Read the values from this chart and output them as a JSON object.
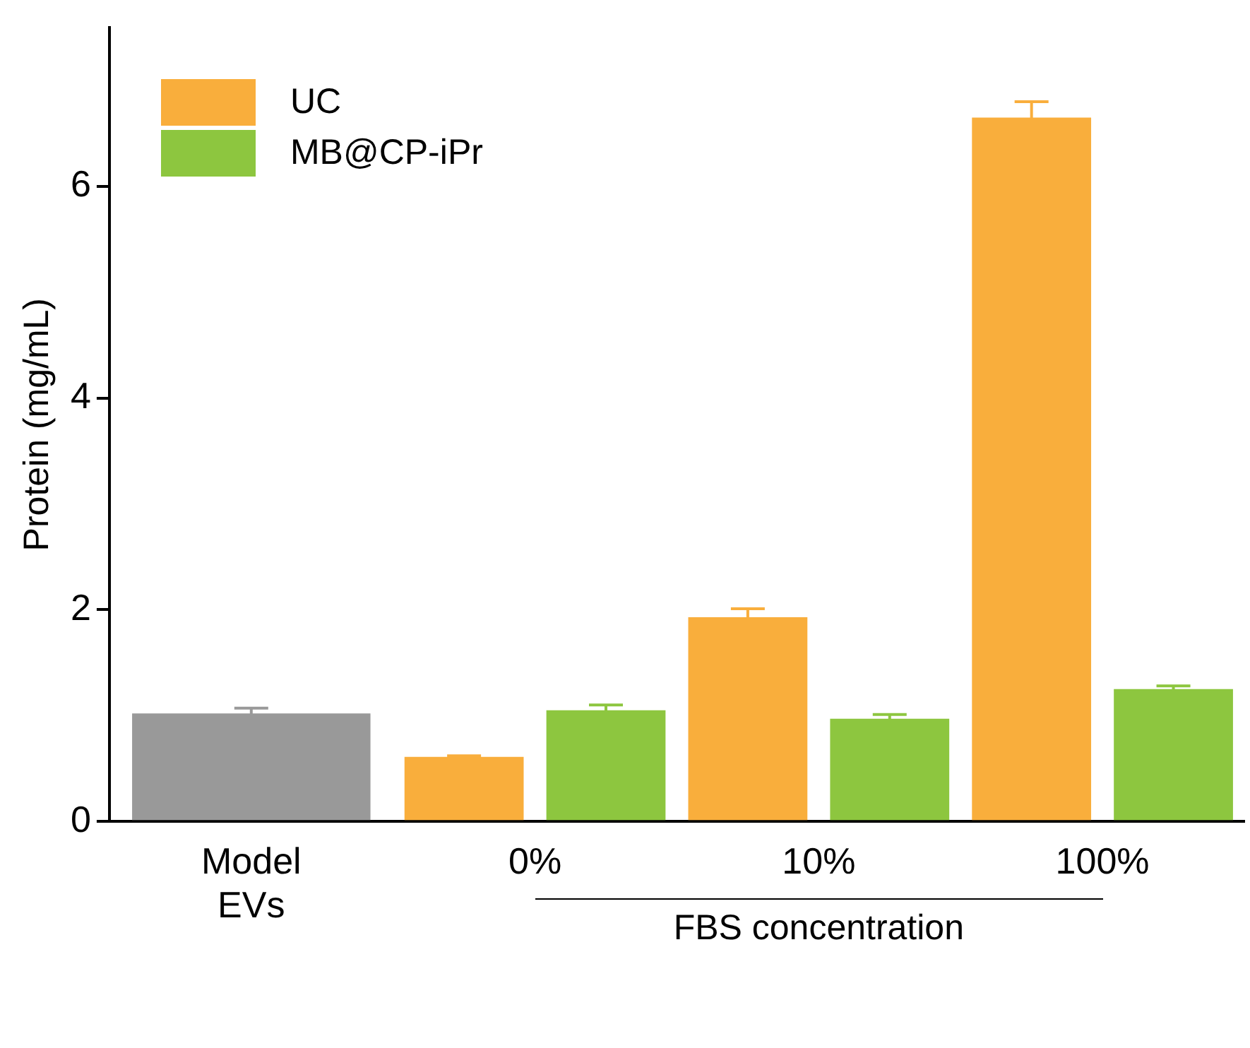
{
  "chart_data": {
    "type": "bar",
    "ylabel": "Protein (mg/mL)",
    "categories": [
      "Model EVs",
      "0%",
      "10%",
      "100%"
    ],
    "series": [
      {
        "name": "UC",
        "color": "#f9ae3c",
        "values": [
          null,
          0.61,
          1.93,
          6.65
        ],
        "errors": [
          null,
          0.01,
          0.08,
          0.15
        ]
      },
      {
        "name": "MB@CP-iPr",
        "color": "#8dc63f",
        "values": [
          null,
          1.05,
          0.97,
          1.25
        ],
        "errors": [
          null,
          0.05,
          0.04,
          0.03
        ]
      },
      {
        "color": "#999999",
        "values": [
          1.02,
          null,
          null,
          null
        ],
        "errors": [
          0.05,
          null,
          null,
          null
        ]
      }
    ],
    "ylim": [
      0,
      7.5
    ],
    "yticks": [
      0,
      2,
      4,
      6
    ],
    "grid": false,
    "legend": "top left",
    "annotations": [
      "FBS concentration"
    ]
  }
}
